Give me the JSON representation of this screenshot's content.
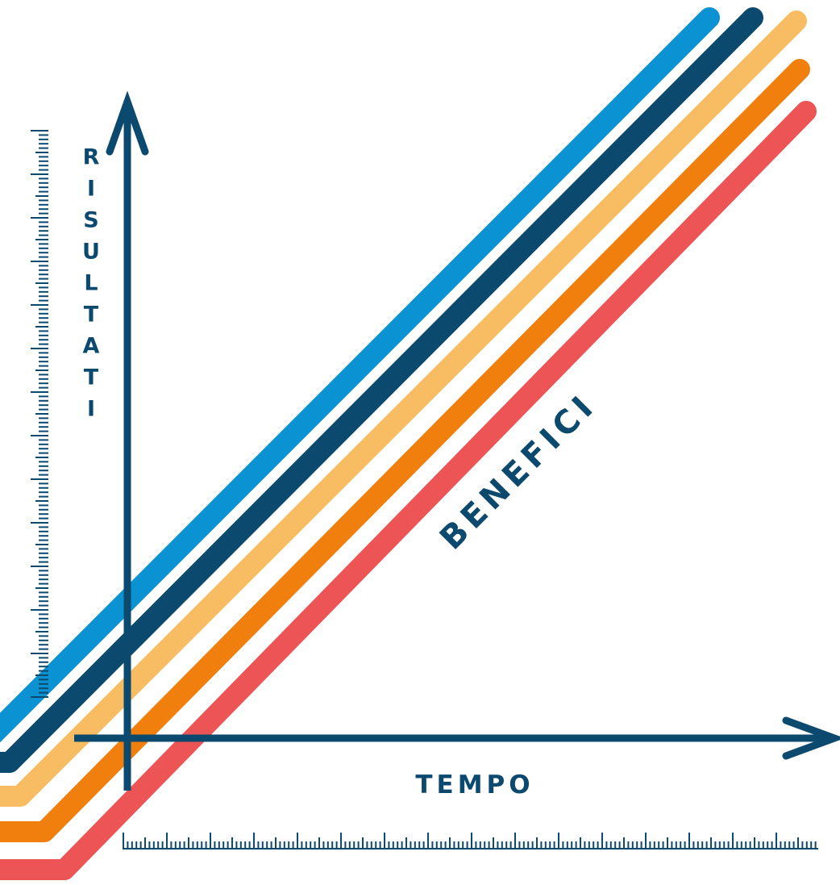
{
  "labels": {
    "y_axis": "RISULTATI",
    "x_axis": "TEMPO",
    "diagonal": "BENEFICI"
  },
  "colors": {
    "axis": "#0b4a6e",
    "ruler": "#0b4a6e",
    "label": "#0b4a6e",
    "stripes": [
      "#0a92d2",
      "#0b4a6e",
      "#f8bd62",
      "#f07f0e",
      "#ec5455"
    ]
  }
}
